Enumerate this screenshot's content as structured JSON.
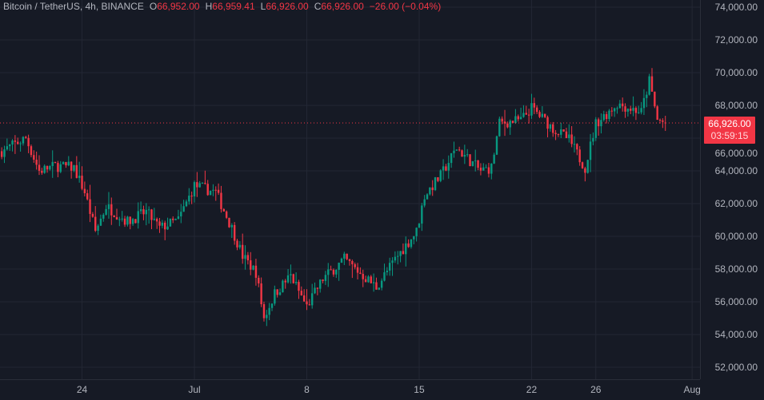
{
  "header": {
    "symbol": "Bitcoin / TetherUS, 4h, BINANCE",
    "open_key": "O",
    "open": "66,952.00",
    "high_key": "H",
    "high": "66,959.41",
    "low_key": "L",
    "low": "66,926.00",
    "close_key": "C",
    "close": "66,926.00",
    "change": "−26.00 (−0.04%)"
  },
  "price_label": {
    "price": "66,926.00",
    "countdown": "03:59:15"
  },
  "colors": {
    "background": "#161a25",
    "up": "#089981",
    "down": "#f23645",
    "grid": "#232734",
    "text": "#b2b5be"
  },
  "chart_data": {
    "type": "candlestick",
    "interval": "4h",
    "ylim": [
      51500,
      74400
    ],
    "y_ticks": [
      "52,000.00",
      "54,000.00",
      "56,000.00",
      "58,000.00",
      "60,000.00",
      "62,000.00",
      "64,000.00",
      "66,000.00",
      "68,000.00",
      "70,000.00",
      "72,000.00",
      "74,000.00"
    ],
    "y_tick_values": [
      52000,
      54000,
      56000,
      58000,
      60000,
      62000,
      64000,
      66000,
      68000,
      70000,
      72000,
      74000
    ],
    "x_ticks": [
      {
        "label": "24",
        "date": "06-24"
      },
      {
        "label": "Jul",
        "date": "07-01"
      },
      {
        "label": "8",
        "date": "07-08"
      },
      {
        "label": "15",
        "date": "07-15"
      },
      {
        "label": "22",
        "date": "07-22"
      },
      {
        "label": "26",
        "date": "07-26"
      },
      {
        "label": "Aug",
        "date": "08-01"
      }
    ],
    "last_price": 66926,
    "close_path": [
      [
        "06-19T00",
        65200
      ],
      [
        "06-20T12",
        66000
      ],
      [
        "06-21T08",
        64000
      ],
      [
        "06-22T08",
        64300
      ],
      [
        "06-23T12",
        64200
      ],
      [
        "06-24T04",
        62700
      ],
      [
        "06-24T20",
        60300
      ],
      [
        "06-25T12",
        61850
      ],
      [
        "06-26T20",
        60900
      ],
      [
        "06-28T00",
        61500
      ],
      [
        "06-28T20",
        60500
      ],
      [
        "06-30T00",
        61000
      ],
      [
        "07-01T00",
        63100
      ],
      [
        "07-02T08",
        62700
      ],
      [
        "07-03T08",
        60500
      ],
      [
        "07-04T00",
        58800
      ],
      [
        "07-04T20",
        57800
      ],
      [
        "07-05T08",
        55000
      ],
      [
        "07-06T00",
        56500
      ],
      [
        "07-07T00",
        57600
      ],
      [
        "07-08T00",
        55700
      ],
      [
        "07-09T00",
        57400
      ],
      [
        "07-10T08",
        58600
      ],
      [
        "07-11T12",
        57600
      ],
      [
        "07-12T08",
        56900
      ],
      [
        "07-13T12",
        58600
      ],
      [
        "07-14T20",
        60300
      ],
      [
        "07-15T08",
        62500
      ],
      [
        "07-16T08",
        63700
      ],
      [
        "07-17T08",
        65400
      ],
      [
        "07-18T20",
        64000
      ],
      [
        "07-19T12",
        64200
      ],
      [
        "07-20T00",
        66900
      ],
      [
        "07-21T08",
        67100
      ],
      [
        "07-22T00",
        67850
      ],
      [
        "07-23T08",
        66600
      ],
      [
        "07-24T08",
        65900
      ],
      [
        "07-25T08",
        64200
      ],
      [
        "07-26T00",
        66900
      ],
      [
        "07-27T08",
        68100
      ],
      [
        "07-28T20",
        67600
      ],
      [
        "07-29T08",
        69500
      ],
      [
        "07-29T20",
        67100
      ],
      [
        "07-30T08",
        66926
      ]
    ]
  }
}
